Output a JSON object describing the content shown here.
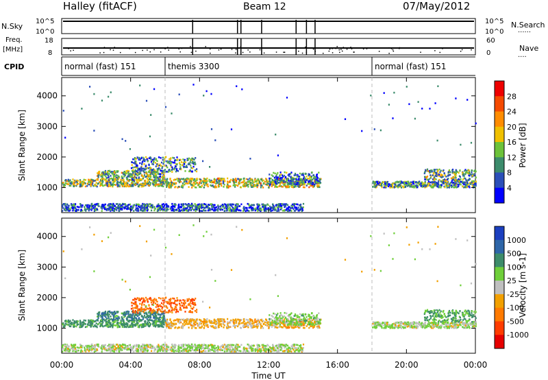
{
  "header": {
    "station": "Halley (fitACF)",
    "beam": "Beam 12",
    "date": "07/May/2012"
  },
  "summary_panels": {
    "nsky_label": "N.Sky",
    "freq_label_line1": "Freq.",
    "freq_label_line2": "[MHz]",
    "cpid_label": "CPID",
    "nsearch_label": "N.Search",
    "nave_label": "Nave",
    "left_ticks_top": [
      "10^5",
      "10^0"
    ],
    "right_ticks_top": [
      "10^5",
      "10^0"
    ],
    "left_ticks_freq": [
      "18",
      "8"
    ],
    "right_ticks_nave": [
      "60",
      "0"
    ],
    "cpid_segments": [
      {
        "label": "normal (fast) 151",
        "start_hour": 0
      },
      {
        "label": "themis 3300",
        "start_hour": 6
      },
      {
        "label": "normal (fast) 151",
        "start_hour": 18
      }
    ],
    "gap_hours": [
      7.6,
      10.2,
      10.4,
      11.6,
      13.6,
      14.2,
      14.7
    ]
  },
  "time_axis": {
    "label": "Time UT",
    "ticks": [
      "00:00",
      "04:00",
      "08:00",
      "12:00",
      "16:00",
      "20:00",
      "00:00"
    ],
    "tick_hours": [
      0,
      4,
      8,
      12,
      16,
      20,
      24
    ]
  },
  "power_panel": {
    "ylabel": "Slant Range [km]",
    "yticks": [
      "1000",
      "2000",
      "3000",
      "4000"
    ],
    "cbar_label": "Power [dB]",
    "cbar_ticks": [
      "4",
      "8",
      "12",
      "16",
      "20",
      "24",
      "28"
    ],
    "colors": [
      "#0000ff",
      "#2b4fb8",
      "#3c8c6c",
      "#6cc23a",
      "#f0c000",
      "#ff8c00",
      "#f54a00",
      "#ee0000"
    ]
  },
  "velocity_panel": {
    "ylabel": "Slant Range [km]",
    "yticks": [
      "1000",
      "2000",
      "3000",
      "4000"
    ],
    "cbar_label": "Velocity [m s-1]",
    "cbar_ticks": [
      "1000",
      "500",
      "100",
      "25",
      "-25",
      "-100",
      "-500",
      "-1000"
    ],
    "colors": [
      "#1b3fbf",
      "#2e66a8",
      "#3d8c6a",
      "#6fcf3a",
      "#bfbfbf",
      "#f2a000",
      "#ff7a00",
      "#ff3c00",
      "#e60000"
    ]
  },
  "chart_data": {
    "type": "heatmap",
    "title": "Halley (fitACF) Beam 12 07/May/2012",
    "xlabel": "Time UT",
    "ylabel": "Slant Range [km]",
    "xlim_hours": [
      0,
      24
    ],
    "ylim_km": [
      180,
      4600
    ],
    "grid": false,
    "mode_change_hours": [
      6,
      18
    ],
    "scatter_bands": [
      {
        "t_start": 0.0,
        "t_end": 6.0,
        "range_center": 1150,
        "range_halfwidth": 120,
        "power_db": 14,
        "velocity": 200
      },
      {
        "t_start": 2.0,
        "t_end": 6.0,
        "range_center": 1400,
        "range_halfwidth": 150,
        "power_db": 12,
        "velocity": 400
      },
      {
        "t_start": 4.0,
        "t_end": 7.8,
        "range_center": 1750,
        "range_halfwidth": 250,
        "power_db": 10,
        "velocity": -400
      },
      {
        "t_start": 6.0,
        "t_end": 15.0,
        "range_center": 1150,
        "range_halfwidth": 150,
        "power_db": 16,
        "velocity": -50
      },
      {
        "t_start": 12.0,
        "t_end": 15.0,
        "range_center": 1300,
        "range_halfwidth": 200,
        "power_db": 8,
        "velocity": 60
      },
      {
        "t_start": 18.0,
        "t_end": 24.0,
        "range_center": 1100,
        "range_halfwidth": 100,
        "power_db": 10,
        "velocity": 20
      },
      {
        "t_start": 21.0,
        "t_end": 24.0,
        "range_center": 1400,
        "range_halfwidth": 200,
        "power_db": 12,
        "velocity": 100
      },
      {
        "t_start": 0.0,
        "t_end": 14.0,
        "range_center": 350,
        "range_halfwidth": 120,
        "power_db": 6,
        "velocity": 20
      }
    ]
  }
}
